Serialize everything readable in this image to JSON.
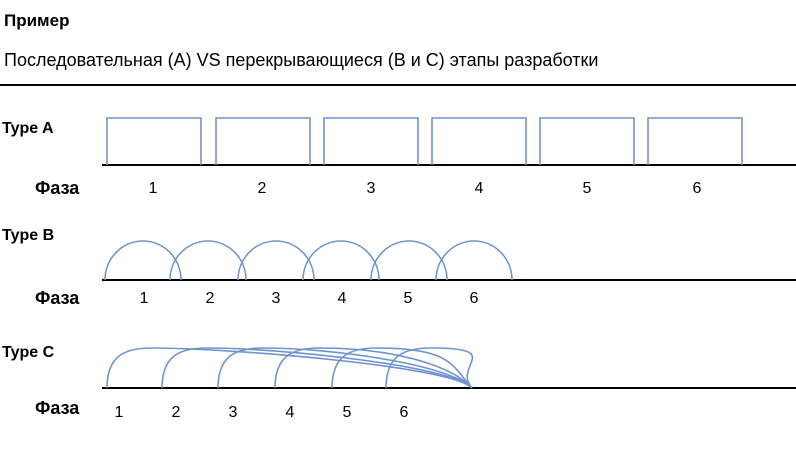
{
  "heading": "Пример",
  "subtitle": "Последовательная (A) VS перекрывающиеся (B и C) этапы разработки",
  "stroke_color": "#6f93cf",
  "rows": [
    {
      "type_label": "Type A",
      "phase_label": "Фаза",
      "phases": [
        "1",
        "2",
        "3",
        "4",
        "5",
        "6"
      ]
    },
    {
      "type_label": "Type B",
      "phase_label": "Фаза",
      "phases": [
        "1",
        "2",
        "3",
        "4",
        "5",
        "6"
      ]
    },
    {
      "type_label": "Type C",
      "phase_label": "Фаза",
      "phases": [
        "1",
        "2",
        "3",
        "4",
        "5",
        "6"
      ]
    }
  ]
}
